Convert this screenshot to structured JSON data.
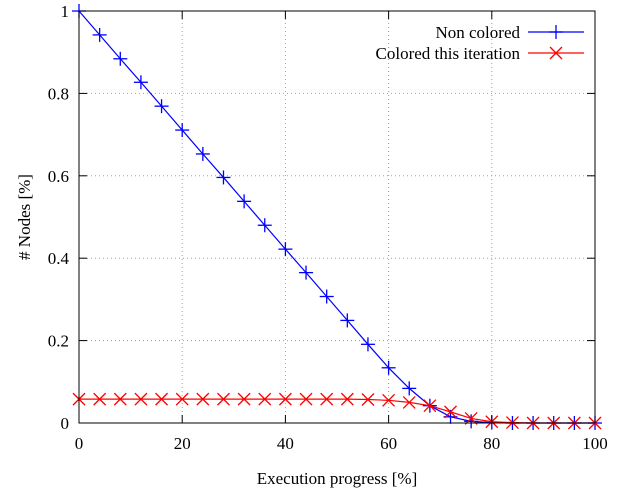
{
  "chart_data": {
    "type": "line",
    "xlabel": "Execution progress [%]",
    "ylabel": "# Nodes [%]",
    "xlim": [
      0,
      100
    ],
    "ylim": [
      0,
      1
    ],
    "xticks": [
      0,
      20,
      40,
      60,
      80,
      100
    ],
    "xtick_labels": [
      "0",
      "20",
      "40",
      "60",
      "80",
      "100"
    ],
    "yticks": [
      0,
      0.2,
      0.4,
      0.6,
      0.8,
      1
    ],
    "ytick_labels": [
      "0",
      "0.2",
      "0.4",
      "0.6",
      "0.8",
      "1"
    ],
    "grid": true,
    "legend_position": "top-right",
    "x": [
      0,
      4,
      8,
      12,
      16,
      20,
      24,
      28,
      32,
      36,
      40,
      44,
      48,
      52,
      56,
      60,
      64,
      68,
      72,
      76,
      80,
      84,
      88,
      92,
      96,
      100
    ],
    "series": [
      {
        "name": "Non colored",
        "color": "#0000ff",
        "marker": "plus",
        "values": [
          1.0,
          0.942,
          0.884,
          0.827,
          0.769,
          0.711,
          0.653,
          0.596,
          0.538,
          0.48,
          0.422,
          0.365,
          0.307,
          0.249,
          0.191,
          0.134,
          0.084,
          0.042,
          0.015,
          0.004,
          0.001,
          0,
          0,
          0,
          0,
          0
        ]
      },
      {
        "name": "Colored this iteration",
        "color": "#ff0000",
        "marker": "cross",
        "values": [
          0.058,
          0.058,
          0.058,
          0.058,
          0.058,
          0.058,
          0.058,
          0.058,
          0.058,
          0.058,
          0.058,
          0.058,
          0.058,
          0.058,
          0.057,
          0.055,
          0.05,
          0.042,
          0.027,
          0.011,
          0.003,
          0.001,
          0,
          0,
          0,
          0
        ]
      }
    ]
  }
}
